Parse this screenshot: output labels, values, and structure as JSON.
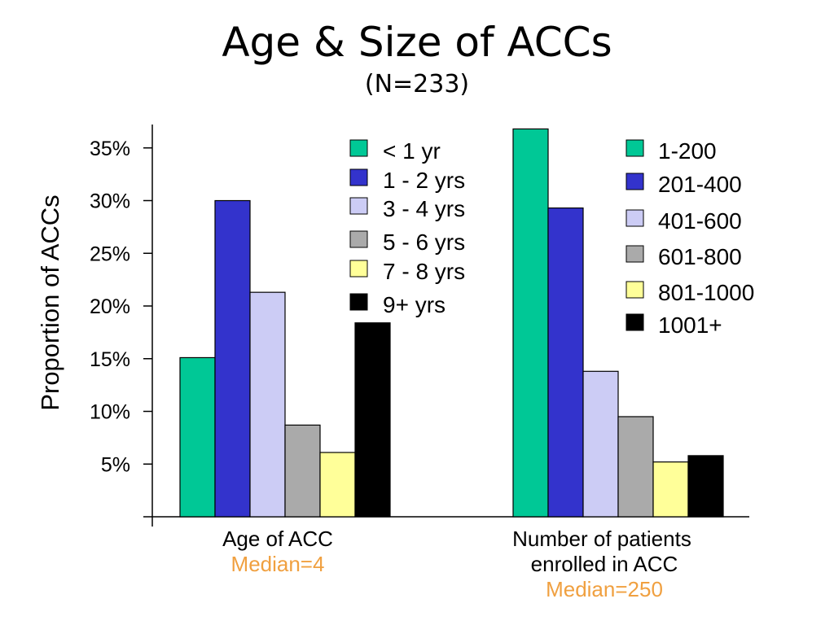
{
  "chart_data": {
    "type": "bar",
    "title": "Age & Size of ACCs",
    "subtitle": "(N=233)",
    "ylabel": "Proportion of ACCs",
    "ylim": [
      0,
      37.5
    ],
    "yticks": [
      "5%",
      "10%",
      "15%",
      "20%",
      "25%",
      "30%",
      "35%"
    ],
    "ytick_values": [
      5,
      10,
      15,
      20,
      25,
      30,
      35
    ],
    "grid": false,
    "groups": [
      {
        "category": "Age of ACC",
        "note": "Median=4",
        "series": [
          {
            "name": "< 1 yr",
            "value": 15.1,
            "color": "#00c896"
          },
          {
            "name": "1 - 2 yrs",
            "value": 30.0,
            "color": "#3333cc"
          },
          {
            "name": "3 - 4 yrs",
            "value": 21.3,
            "color": "#ccccf5"
          },
          {
            "name": "5 - 6 yrs",
            "value": 8.7,
            "color": "#aaaaaa"
          },
          {
            "name": "7 - 8 yrs",
            "value": 6.1,
            "color": "#ffff99"
          },
          {
            "name": "9+ yrs",
            "value": 18.4,
            "color": "#000000"
          }
        ]
      },
      {
        "category": "Number of patients enrolled in ACC",
        "category_lines": [
          "Number of patients",
          "enrolled in ACC"
        ],
        "note": "Median=250",
        "series": [
          {
            "name": "1-200",
            "value": 36.8,
            "color": "#00c896"
          },
          {
            "name": "201-400",
            "value": 29.3,
            "color": "#3333cc"
          },
          {
            "name": "401-600",
            "value": 13.8,
            "color": "#ccccf5"
          },
          {
            "name": "601-800",
            "value": 9.5,
            "color": "#aaaaaa"
          },
          {
            "name": "801-1000",
            "value": 5.2,
            "color": "#ffff99"
          },
          {
            "name": "1001+",
            "value": 5.8,
            "color": "#000000"
          }
        ]
      }
    ]
  }
}
